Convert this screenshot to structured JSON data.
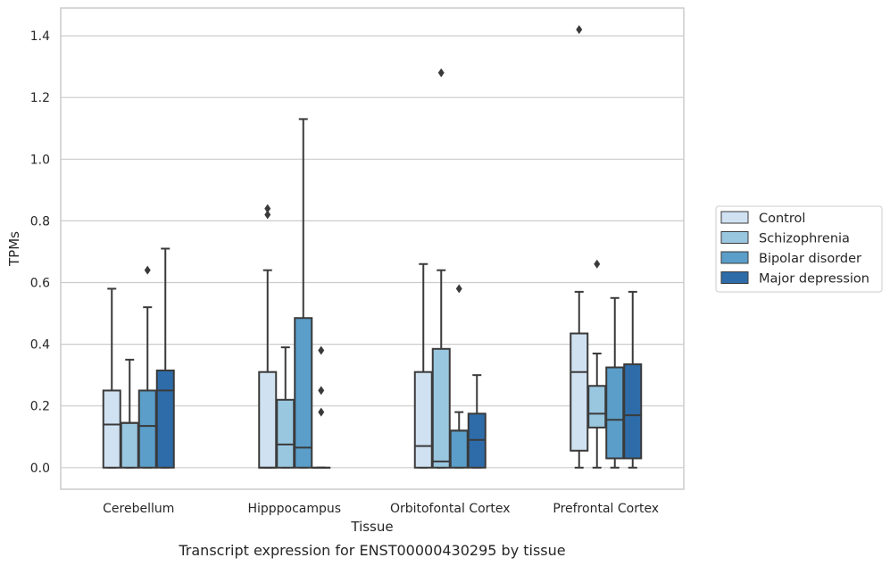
{
  "chart_data": {
    "type": "box",
    "xlabel": "Tissue",
    "ylabel": "TPMs",
    "caption": "Transcript expression for ENST00000430295 by tissue",
    "ylim": [
      -0.07,
      1.49
    ],
    "yticks": [
      0.0,
      0.2,
      0.4,
      0.6,
      0.8,
      1.0,
      1.2,
      1.4
    ],
    "ytick_labels": [
      "0.0",
      "0.2",
      "0.4",
      "0.6",
      "0.8",
      "1.0",
      "1.2",
      "1.4"
    ],
    "grid": true,
    "legend_position": "right",
    "categories": [
      "Cerebellum",
      "Hipppocampus",
      "Orbitofontal Cortex",
      "Prefrontal Cortex"
    ],
    "series": [
      {
        "name": "Control",
        "color": "#d0e1f2",
        "boxes": [
          {
            "q1": 0.0,
            "median": 0.14,
            "q3": 0.25,
            "whisker_low": 0.0,
            "whisker_high": 0.58,
            "outliers": []
          },
          {
            "q1": 0.0,
            "median": 0.0,
            "q3": 0.31,
            "whisker_low": 0.0,
            "whisker_high": 0.64,
            "outliers": [
              0.82,
              0.84
            ]
          },
          {
            "q1": 0.0,
            "median": 0.07,
            "q3": 0.31,
            "whisker_low": 0.0,
            "whisker_high": 0.66,
            "outliers": []
          },
          {
            "q1": 0.055,
            "median": 0.31,
            "q3": 0.435,
            "whisker_low": 0.0,
            "whisker_high": 0.57,
            "outliers": [
              1.42
            ]
          }
        ]
      },
      {
        "name": "Schizophrenia",
        "color": "#9ac7e0",
        "boxes": [
          {
            "q1": 0.0,
            "median": 0.145,
            "q3": 0.145,
            "whisker_low": 0.0,
            "whisker_high": 0.35,
            "outliers": []
          },
          {
            "q1": 0.0,
            "median": 0.075,
            "q3": 0.22,
            "whisker_low": 0.0,
            "whisker_high": 0.39,
            "outliers": []
          },
          {
            "q1": 0.0,
            "median": 0.02,
            "q3": 0.385,
            "whisker_low": 0.0,
            "whisker_high": 0.64,
            "outliers": [
              1.28
            ]
          },
          {
            "q1": 0.13,
            "median": 0.175,
            "q3": 0.265,
            "whisker_low": 0.0,
            "whisker_high": 0.37,
            "outliers": [
              0.66
            ]
          }
        ]
      },
      {
        "name": "Bipolar disorder",
        "color": "#5a9ec9",
        "boxes": [
          {
            "q1": 0.0,
            "median": 0.135,
            "q3": 0.25,
            "whisker_low": 0.0,
            "whisker_high": 0.52,
            "outliers": [
              0.64
            ]
          },
          {
            "q1": 0.0,
            "median": 0.065,
            "q3": 0.485,
            "whisker_low": 0.0,
            "whisker_high": 1.13,
            "outliers": []
          },
          {
            "q1": 0.0,
            "median": 0.12,
            "q3": 0.12,
            "whisker_low": 0.0,
            "whisker_high": 0.18,
            "outliers": [
              0.58
            ]
          },
          {
            "q1": 0.03,
            "median": 0.155,
            "q3": 0.325,
            "whisker_low": 0.0,
            "whisker_high": 0.55,
            "outliers": []
          }
        ]
      },
      {
        "name": "Major depression",
        "color": "#2e6ca9",
        "boxes": [
          {
            "q1": 0.0,
            "median": 0.25,
            "q3": 0.315,
            "whisker_low": 0.0,
            "whisker_high": 0.71,
            "outliers": []
          },
          {
            "q1": 0.0,
            "median": 0.0,
            "q3": 0.0,
            "whisker_low": 0.0,
            "whisker_high": 0.0,
            "outliers": [
              0.18,
              0.25,
              0.38
            ]
          },
          {
            "q1": 0.0,
            "median": 0.09,
            "q3": 0.175,
            "whisker_low": 0.0,
            "whisker_high": 0.3,
            "outliers": []
          },
          {
            "q1": 0.03,
            "median": 0.17,
            "q3": 0.335,
            "whisker_low": 0.0,
            "whisker_high": 0.57,
            "outliers": []
          }
        ]
      }
    ]
  }
}
